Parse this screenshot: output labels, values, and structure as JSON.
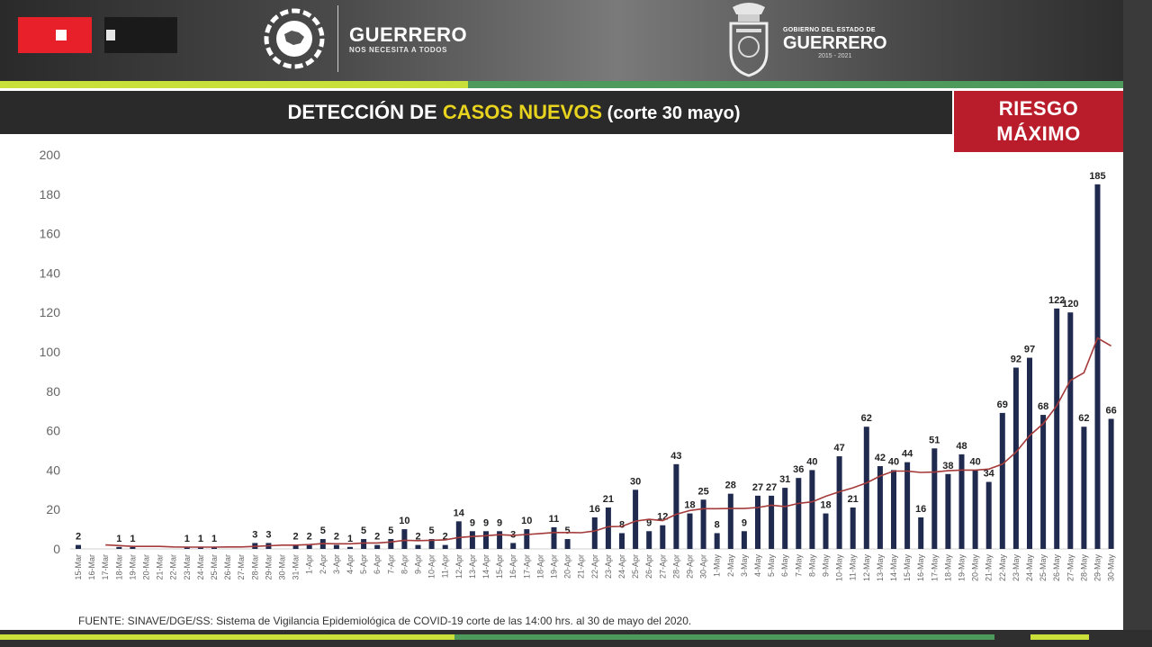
{
  "header": {
    "brand_title": "GUERRERO",
    "brand_subtitle": "NOS NECESITA A TODOS",
    "gov_top": "GOBIERNO DEL ESTADO DE",
    "gov_title": "GUERRERO",
    "gov_years": "2015 - 2021"
  },
  "title": {
    "part1": "DETECCIÓN DE ",
    "highlight": "CASOS NUEVOS",
    "part2": " (corte 30 mayo)"
  },
  "risk": {
    "line1": "RIESGO",
    "line2": "MÁXIMO"
  },
  "footer": {
    "source": "FUENTE: SINAVE/DGE/SS: Sistema de Vigilancia Epidemiológica de COVID-19 corte de las 14:00 hrs. al 30 de mayo del 2020."
  },
  "colors": {
    "bar": "#1f2a4e",
    "line": "#a43a3a",
    "accent_yellow": "#e8d31f",
    "risk_red": "#b91c2a"
  },
  "chart_data": {
    "type": "bar",
    "title": "DETECCIÓN DE CASOS NUEVOS (corte 30 mayo)",
    "ylim": [
      0,
      200
    ],
    "yticks": [
      0,
      20,
      40,
      60,
      80,
      100,
      120,
      140,
      160,
      180,
      200
    ],
    "grid": false,
    "categories": [
      "15-Mar",
      "16-Mar",
      "17-Mar",
      "18-Mar",
      "19-Mar",
      "20-Mar",
      "21-Mar",
      "22-Mar",
      "23-Mar",
      "24-Mar",
      "25-Mar",
      "26-Mar",
      "27-Mar",
      "28-Mar",
      "29-Mar",
      "30-Mar",
      "31-Mar",
      "1-Apr",
      "2-Apr",
      "3-Apr",
      "4-Apr",
      "5-Apr",
      "6-Apr",
      "7-Apr",
      "8-Apr",
      "9-Apr",
      "10-Apr",
      "11-Apr",
      "12-Apr",
      "13-Apr",
      "14-Apr",
      "15-Apr",
      "16-Apr",
      "17-Apr",
      "18-Apr",
      "19-Apr",
      "20-Apr",
      "21-Apr",
      "22-Apr",
      "23-Apr",
      "24-Apr",
      "25-Apr",
      "26-Apr",
      "27-Apr",
      "28-Apr",
      "29-Apr",
      "30-Apr",
      "1-May",
      "2-May",
      "3-May",
      "4-May",
      "5-May",
      "6-May",
      "7-May",
      "8-May",
      "9-May",
      "10-May",
      "11-May",
      "12-May",
      "13-May",
      "14-May",
      "15-May",
      "16-May",
      "17-May",
      "18-May",
      "19-May",
      "20-May",
      "21-May",
      "22-May",
      "23-May",
      "24-May",
      "25-May",
      "26-May",
      "27-May",
      "28-May",
      "29-May",
      "30-May"
    ],
    "values": [
      2,
      0,
      0,
      1,
      1,
      0,
      0,
      0,
      1,
      1,
      1,
      0,
      0,
      3,
      3,
      0,
      2,
      2,
      5,
      2,
      1,
      5,
      2,
      5,
      10,
      2,
      5,
      2,
      14,
      9,
      9,
      9,
      3,
      10,
      0,
      11,
      5,
      0,
      16,
      21,
      8,
      30,
      9,
      12,
      43,
      18,
      25,
      8,
      28,
      9,
      27,
      27,
      31,
      36,
      40,
      18,
      47,
      21,
      62,
      42,
      40,
      44,
      16,
      51,
      38,
      48,
      40,
      34,
      69,
      92,
      97,
      68,
      122,
      120,
      62,
      185,
      66
    ],
    "labels": [
      "2",
      "",
      "",
      "1",
      "1",
      "",
      "",
      "",
      "1",
      "1",
      "1",
      "",
      "",
      "3",
      "3",
      "",
      "2",
      "2",
      "5",
      "2",
      "1",
      "5",
      "2",
      "5",
      "10",
      "2",
      "5",
      "2",
      "14",
      "9",
      "9",
      "9",
      "3",
      "10",
      "",
      "11",
      "5",
      "",
      "16",
      "21",
      "8",
      "30",
      "9",
      "12",
      "43",
      "18",
      "25",
      "8",
      "28",
      "9",
      "27",
      "27",
      "31",
      "36",
      "40",
      "18",
      "47",
      "21",
      "62",
      "42",
      "40",
      "44",
      "16",
      "51",
      "38",
      "48",
      "40",
      "34",
      "69",
      "92",
      "97",
      "68",
      "122",
      "120",
      "62",
      "185",
      "66"
    ],
    "trend": [
      null,
      null,
      2,
      1.7,
      1.3,
      1.3,
      1.3,
      1,
      0.9,
      0.9,
      0.9,
      1,
      1,
      1.3,
      1.6,
      1.9,
      1.9,
      2.2,
      2.7,
      2.6,
      2.6,
      3,
      3,
      3.5,
      4.4,
      4.2,
      4.4,
      4.6,
      5.8,
      6.3,
      6.7,
      7.2,
      6.9,
      7.3,
      7.8,
      8.3,
      8.3,
      8.2,
      9.1,
      11.3,
      11.4,
      14.1,
      15,
      14.4,
      17.6,
      19.5,
      20.4,
      20.4,
      20.5,
      20.5,
      21,
      22.2,
      21.5,
      23.1,
      23.9,
      26.7,
      29,
      31,
      33.5,
      37,
      39.5,
      39.5,
      38.8,
      39,
      39.7,
      40,
      40,
      40.5,
      43,
      49.1,
      57.5,
      63.5,
      72.7,
      85.5,
      89.4,
      107,
      103
    ]
  }
}
